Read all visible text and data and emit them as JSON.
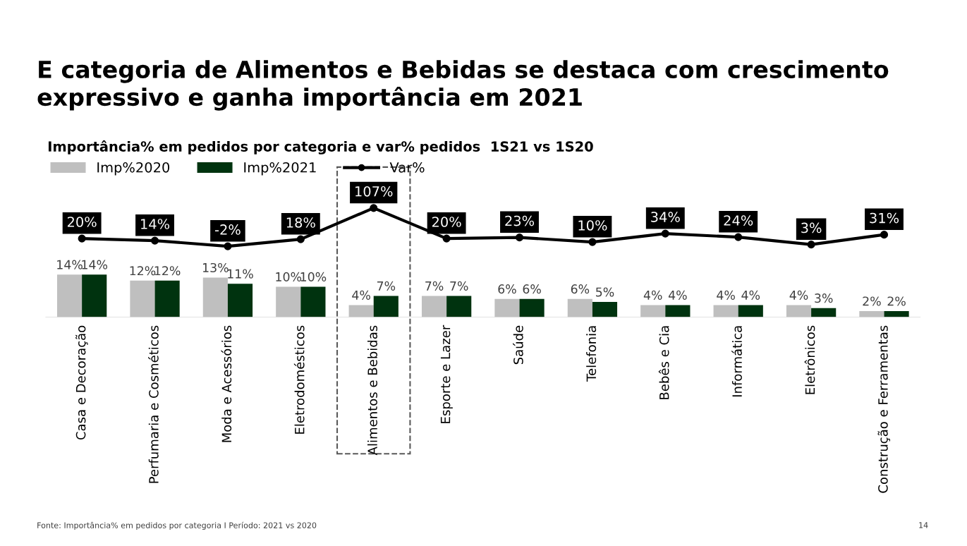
{
  "chart_data": [
    {
      "type": "bar",
      "categories": [
        "Casa e Decoração",
        "Perfumaria e Cosméticos",
        "Moda e Acessórios",
        "Eletrodomésticos",
        "Alimentos e Bebidas",
        "Esporte e Lazer",
        "Saúde",
        "Telefonia",
        "Bebês e Cia",
        "Informática",
        "Eletrônicos",
        "Construção e Ferramentas"
      ],
      "series": [
        {
          "name": "Imp%2020",
          "color": "#bfbfbf",
          "values": [
            14,
            12,
            13,
            10,
            4,
            7,
            6,
            6,
            4,
            4,
            4,
            2
          ],
          "value_labels": [
            "14%",
            "12%",
            "13%",
            "10%",
            "4%",
            "7%",
            "6%",
            "6%",
            "4%",
            "4%",
            "4%",
            "2%"
          ]
        },
        {
          "name": "Imp%2021",
          "color": "#00330f",
          "values": [
            14,
            12,
            11,
            10,
            7,
            7,
            6,
            5,
            4,
            4,
            3,
            2
          ],
          "value_labels": [
            "14%",
            "12%",
            "11%",
            "10%",
            "7%",
            "7%",
            "6%",
            "5%",
            "4%",
            "4%",
            "3%",
            "2%"
          ]
        }
      ],
      "tick_labels": "x",
      "grid": false,
      "legend": "top left",
      "annotations": [
        "Fonte: Importância% em pedidos por categoria I Período: 2021 vs 2020",
        "14"
      ]
    },
    {
      "type": "line",
      "title": "E categoria de Alimentos e Bebidas se destaca com crescimento expressivo e ganha importância em 2021",
      "subtitle": "Importância% em pedidos por categoria e var% pedidos  1S21 vs 1S20",
      "categories": [
        null,
        null,
        null,
        null,
        null,
        null,
        null,
        null,
        null,
        null,
        null,
        null
      ],
      "series": [
        {
          "name": "Var%",
          "color": "#000000",
          "values": [
            20,
            14,
            -2,
            18,
            107,
            20,
            23,
            10,
            34,
            24,
            3,
            31
          ],
          "value_labels": [
            "20%",
            "14%",
            "-2%",
            "18%",
            "107%",
            "20%",
            "23%",
            "10%",
            "34%",
            "24%",
            "3%",
            "31%"
          ]
        }
      ],
      "marker": "circle",
      "tick_labels": false
    }
  ]
}
